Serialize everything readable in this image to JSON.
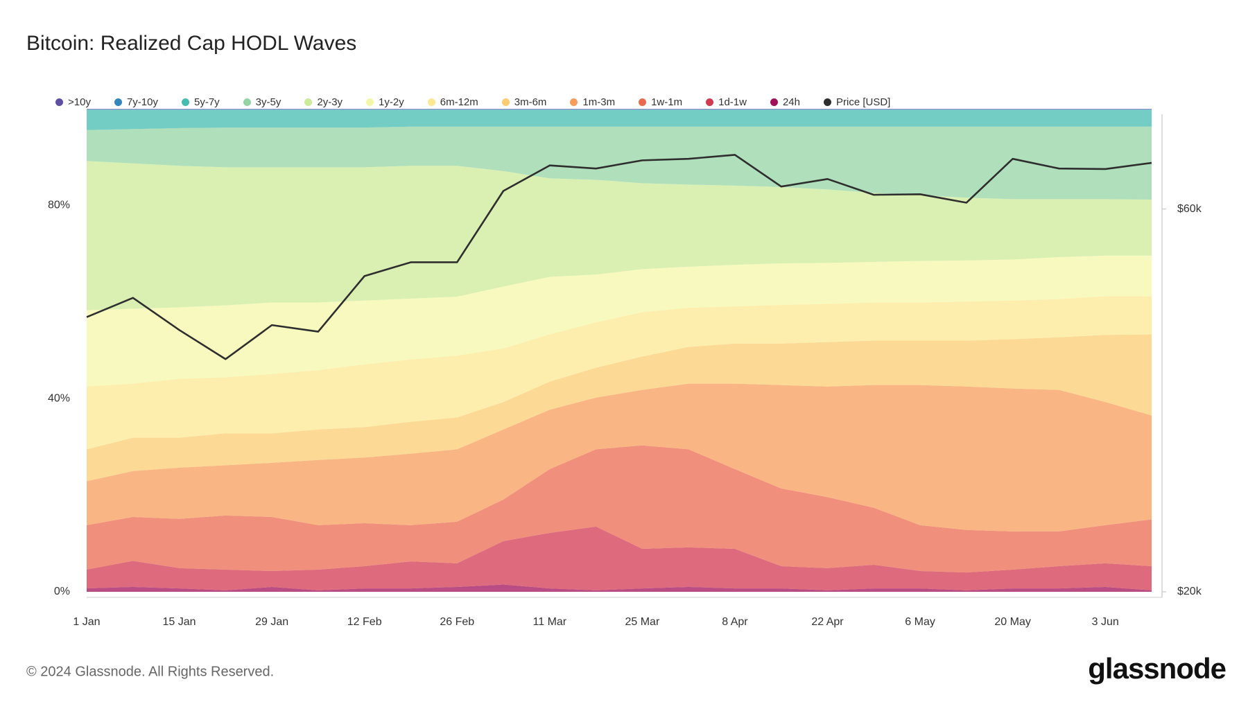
{
  "chart_data": {
    "type": "stacked_area",
    "title": "Bitcoin: Realized Cap HODL Waves",
    "categories": [
      "1 Jan",
      null,
      "15 Jan",
      null,
      "29 Jan",
      null,
      "12 Feb",
      null,
      "26 Feb",
      null,
      "11 Mar",
      null,
      "25 Mar",
      null,
      "8 Apr",
      null,
      "22 Apr",
      null,
      "6 May",
      null,
      "20 May",
      null,
      "3 Jun",
      null
    ],
    "ylim": [
      0,
      100
    ],
    "yticks": [
      {
        "value": 0,
        "label": "0%"
      },
      {
        "value": 40,
        "label": "40%"
      },
      {
        "value": 80,
        "label": "80%"
      }
    ],
    "y2lim": [
      20000,
      80000
    ],
    "y2ticks": [
      {
        "value": 20000,
        "label": "$20k"
      },
      {
        "value": 60000,
        "label": "$60k"
      }
    ],
    "y2_log_scale": true,
    "legend": "top",
    "series": [
      {
        "name": ">10y",
        "color": "#5e4fa2",
        "values": [
          0.1,
          0.1,
          0.1,
          0.1,
          0.1,
          0.1,
          0.1,
          0.1,
          0.1,
          0.1,
          0.1,
          0.1,
          0.1,
          0.1,
          0.1,
          0.1,
          0.1,
          0.1,
          0.1,
          0.1,
          0.1,
          0.1,
          0.1,
          0.1
        ]
      },
      {
        "name": "7y-10y",
        "color": "#3288bd",
        "values": [
          0.1,
          0.1,
          0.1,
          0.1,
          0.1,
          0.1,
          0.1,
          0.1,
          0.1,
          0.1,
          0.1,
          0.1,
          0.1,
          0.1,
          0.1,
          0.1,
          0.1,
          0.1,
          0.1,
          0.1,
          0.1,
          0.1,
          0.1,
          0.1
        ]
      },
      {
        "name": "5y-7y",
        "color": "#45bcb0",
        "values": [
          4.2,
          4.0,
          3.8,
          3.7,
          3.7,
          3.7,
          3.7,
          3.5,
          3.5,
          3.5,
          3.5,
          3.5,
          3.5,
          3.5,
          3.5,
          3.5,
          3.5,
          3.5,
          3.5,
          3.5,
          3.5,
          3.5,
          3.5,
          3.5
        ]
      },
      {
        "name": "3y-5y",
        "color": "#94d4a4",
        "values": [
          6.4,
          7.1,
          7.8,
          8.2,
          8.2,
          8.2,
          8.2,
          8.1,
          8.1,
          9.2,
          10.7,
          11.0,
          11.7,
          12.0,
          12.2,
          12.5,
          13.0,
          13.7,
          14.2,
          14.7,
          15.0,
          15.0,
          15.0,
          15.1
        ]
      },
      {
        "name": "2y-3y",
        "color": "#cdeb9a",
        "values": [
          30.9,
          30.1,
          29.3,
          28.6,
          28.0,
          28.0,
          27.6,
          27.5,
          27.1,
          23.9,
          20.4,
          19.6,
          17.8,
          17.0,
          16.4,
          15.8,
          15.2,
          14.3,
          13.6,
          13.0,
          12.5,
          12.0,
          11.7,
          11.6
        ]
      },
      {
        "name": "1y-2y",
        "color": "#f4f7a8",
        "values": [
          15.8,
          15.5,
          14.8,
          14.9,
          14.8,
          14.0,
          13.2,
          12.6,
          12.2,
          12.8,
          11.9,
          9.9,
          8.9,
          8.5,
          8.6,
          8.6,
          8.5,
          8.4,
          8.6,
          8.5,
          8.5,
          8.7,
          8.4,
          8.4
        ]
      },
      {
        "name": "6m-12m",
        "color": "#fde891",
        "values": [
          13.0,
          11.2,
          12.2,
          11.6,
          12.3,
          12.3,
          13.0,
          12.9,
          12.8,
          11.1,
          9.8,
          9.4,
          9.2,
          8.1,
          7.7,
          8.0,
          7.9,
          7.9,
          7.9,
          8.1,
          8.0,
          7.9,
          8.0,
          7.9
        ]
      },
      {
        "name": "3m-6m",
        "color": "#fbcc72",
        "values": [
          6.6,
          6.9,
          6.2,
          6.6,
          6.1,
          6.3,
          6.3,
          6.6,
          6.6,
          5.7,
          5.8,
          6.2,
          6.9,
          7.6,
          8.3,
          8.6,
          9.2,
          9.2,
          9.2,
          9.5,
          10.2,
          10.9,
          13.9,
          16.8
        ]
      },
      {
        "name": "1m-3m",
        "color": "#f89c5b",
        "values": [
          9.1,
          9.5,
          10.6,
          10.4,
          11.2,
          13.5,
          13.6,
          14.8,
          15.0,
          14.5,
          12.3,
          10.7,
          11.5,
          13.6,
          17.7,
          21.4,
          22.9,
          25.4,
          29.0,
          29.7,
          29.6,
          29.3,
          25.5,
          21.5
        ]
      },
      {
        "name": "1w-1m",
        "color": "#ea6a50",
        "values": [
          9.2,
          9.1,
          10.2,
          11.2,
          11.2,
          9.2,
          8.9,
          7.5,
          8.6,
          8.6,
          13.2,
          16.0,
          21.4,
          20.3,
          16.5,
          16.1,
          14.7,
          11.8,
          9.5,
          8.8,
          7.9,
          7.2,
          7.9,
          9.7
        ]
      },
      {
        "name": "1d-1w",
        "color": "#d23a52",
        "values": [
          3.9,
          5.4,
          4.2,
          4.3,
          3.3,
          4.3,
          4.6,
          5.6,
          4.9,
          9.0,
          11.5,
          13.2,
          8.2,
          8.2,
          8.2,
          4.6,
          4.6,
          4.9,
          3.6,
          3.7,
          3.9,
          4.6,
          4.9,
          5.0
        ]
      },
      {
        "name": "24h",
        "color": "#a0105a",
        "values": [
          0.7,
          1.0,
          0.7,
          0.3,
          1.0,
          0.3,
          0.7,
          0.7,
          1.0,
          1.5,
          0.7,
          0.3,
          0.7,
          1.0,
          0.7,
          0.7,
          0.3,
          0.7,
          0.7,
          0.3,
          0.7,
          0.7,
          1.0,
          0.3
        ]
      },
      {
        "name": "Price [USD]",
        "color": "#2e2e2e",
        "type": "line",
        "axis": "y2",
        "values": [
          44000,
          46500,
          42400,
          39000,
          43000,
          42200,
          49500,
          51500,
          51500,
          63200,
          68000,
          67400,
          69000,
          69300,
          70100,
          64000,
          65400,
          62500,
          62600,
          61100,
          69300,
          67400,
          67300,
          68500
        ]
      }
    ]
  },
  "footer": {
    "copyright": "© 2024 Glassnode. All Rights Reserved.",
    "brand": "glassnode"
  }
}
